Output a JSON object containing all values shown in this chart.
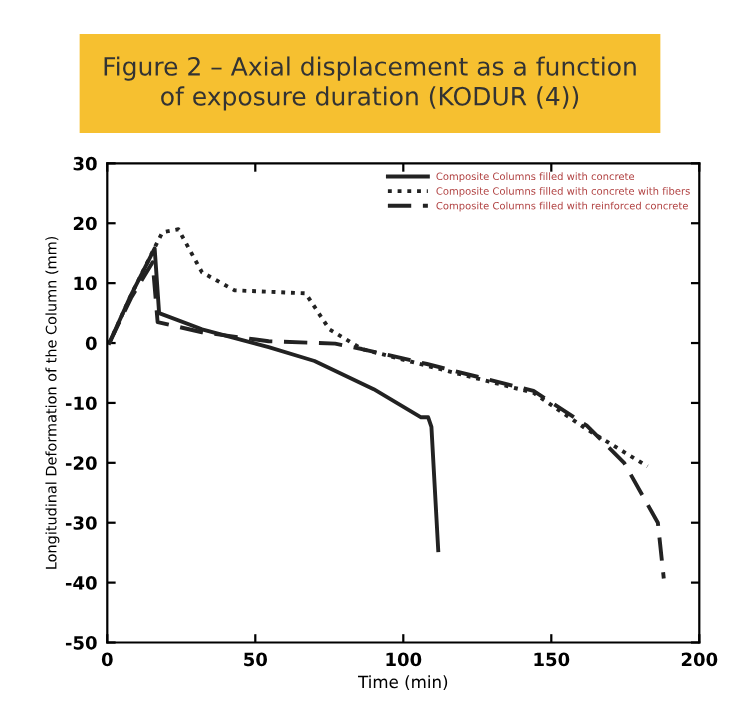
{
  "chart_data": {
    "type": "line",
    "title": "Figure 2 – Axial displacement as a function\nof exposure duration (KODUR (4))",
    "xlabel": "Time (min)",
    "ylabel": "Longitudinal Deformation of the Column (mm)",
    "xlim": [
      0,
      200
    ],
    "ylim": [
      -50,
      30
    ],
    "xticks": [
      0,
      50,
      100,
      150,
      200
    ],
    "yticks": [
      -50,
      -40,
      -30,
      -20,
      -10,
      0,
      10,
      20,
      30
    ],
    "grid": false,
    "legend": "top right",
    "marker": "none",
    "series": [
      {
        "name": "Composite Columns filled with concrete",
        "color": "#222222",
        "line_style": "solid",
        "x": [
          0.7,
          8,
          16,
          17.5,
          32,
          54.5,
          70,
          90,
          106,
          108.4,
          109.5,
          111.8
        ],
        "values": [
          0,
          8,
          15.8,
          5,
          2.3,
          -0.7,
          -3,
          -7.7,
          -12.4,
          -12.4,
          -14,
          -34.6
        ]
      },
      {
        "name": "Composite Columns filled with concrete with fibers",
        "color": "#222222",
        "line_style": "dotted",
        "x": [
          0.7,
          8,
          18.6,
          24,
          32,
          43,
          67,
          75,
          86,
          108,
          144,
          162,
          182.5
        ],
        "values": [
          0,
          8,
          18.5,
          19,
          11.8,
          8.8,
          8.3,
          2.3,
          -1,
          -3.8,
          -8.3,
          -14.4,
          -20.6
        ]
      },
      {
        "name": "Composite Columns filled with reinforced concrete",
        "color": "#222222",
        "line_style": "dashed",
        "x": [
          0.7,
          8,
          15.3,
          17,
          32,
          54.5,
          77,
          86,
          108,
          144,
          162,
          174.6,
          186,
          188
        ],
        "values": [
          0,
          7.5,
          13.5,
          3.5,
          1.8,
          0.3,
          -0.1,
          -1,
          -3.5,
          -8,
          -13.8,
          -20,
          -30,
          -39.3
        ]
      }
    ]
  }
}
